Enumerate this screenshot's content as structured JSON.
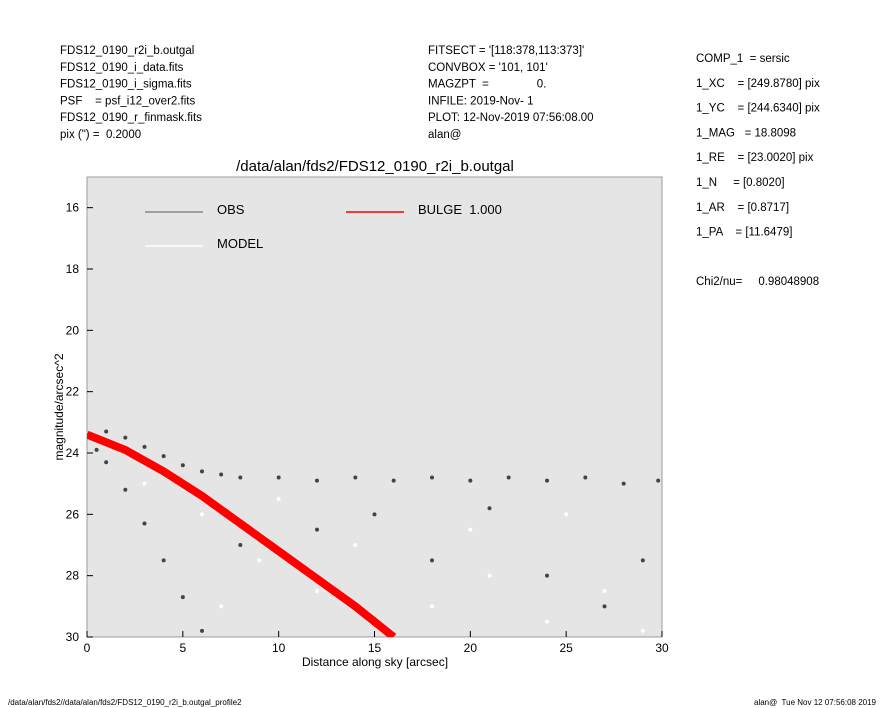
{
  "header": {
    "left": [
      "FDS12_0190_r2i_b.outgal",
      "FDS12_0190_i_data.fits",
      "FDS12_0190_i_sigma.fits",
      "PSF    = psf_i12_over2.fits",
      "FDS12_0190_r_finmask.fits",
      "pix (\") =  0.2000"
    ],
    "middle": [
      "FITSECT = '[118:378,113:373]'",
      "CONVBOX = '101, 101'",
      "MAGZPT  =               0.",
      "INFILE: 2019-Nov- 1",
      "PLOT: 12-Nov-2019 07:56:08.00",
      "alan@"
    ],
    "right": [
      "COMP_1  = sersic",
      "1_XC    = [249.8780] pix",
      "1_YC    = [244.6340] pix",
      "1_MAG   = 18.8098",
      "1_RE    = [23.0020] pix",
      "1_N     = [0.8020]",
      "1_AR    = [0.8717]",
      "1_PA    = [11.6479]"
    ],
    "chi": "Chi2/nu=     0.98048908"
  },
  "footer": {
    "left": "/data/alan/fds2//data/alan/fds2/FDS12_0190_r2i_b.outgal_profile2",
    "right": "alan@  Tue Nov 12 07:56:08 2019"
  },
  "chart_data": {
    "type": "scatter",
    "title": "/data/alan/fds2/FDS12_0190_r2i_b.outgal",
    "x_label": "Distance along sky [arcsec]",
    "y_label": "magnitude/arcsec^2",
    "xlim": [
      0,
      30
    ],
    "xticks": [
      0,
      5,
      10,
      15,
      20,
      25,
      30
    ],
    "ylim": [
      30,
      15
    ],
    "yticks": [
      16,
      18,
      20,
      22,
      24,
      26,
      28,
      30
    ],
    "background": "#e5e5e5",
    "series": [
      {
        "name": "OBS",
        "color": "#444444",
        "legend_color": "#888888",
        "style": "points",
        "x": [
          0.2,
          1,
          2,
          3,
          4,
          5,
          6,
          7,
          8,
          10,
          12,
          14,
          16,
          18,
          20,
          22,
          24,
          26,
          28,
          29.8,
          0.5,
          1,
          2,
          3,
          4,
          5,
          6,
          8,
          12,
          18,
          24,
          27,
          29,
          15,
          21
        ],
        "values": [
          23.4,
          23.3,
          23.5,
          23.8,
          24.1,
          24.4,
          24.6,
          24.7,
          24.8,
          24.8,
          24.9,
          24.8,
          24.9,
          24.8,
          24.9,
          24.8,
          24.9,
          24.8,
          25.0,
          24.9,
          23.9,
          24.3,
          25.2,
          26.3,
          27.5,
          28.7,
          29.8,
          27,
          26.5,
          27.5,
          28,
          29,
          27.5,
          26,
          25.8
        ]
      },
      {
        "name": "MODEL",
        "color": "#ffffff",
        "style": "points",
        "x": [
          3,
          6,
          9,
          12,
          15,
          18,
          21,
          24,
          27,
          29,
          10,
          20,
          25,
          14,
          7
        ],
        "values": [
          25,
          26,
          27.5,
          28.5,
          29.5,
          29,
          28,
          29.5,
          28.5,
          29.8,
          25.5,
          26.5,
          26,
          27,
          29
        ]
      },
      {
        "name": "BULGE  1.000",
        "color": "#ff0000",
        "style": "line",
        "x": [
          0,
          2,
          4,
          6,
          8,
          10,
          12,
          14,
          16
        ],
        "values": [
          23.4,
          23.9,
          24.6,
          25.4,
          26.3,
          27.2,
          28.1,
          29.0,
          30
        ]
      }
    ]
  }
}
